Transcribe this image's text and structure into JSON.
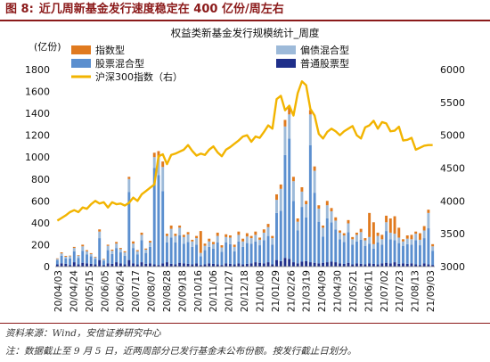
{
  "figure": {
    "number": "图 8:",
    "title": "近几周新基金发行速度稳定在 400 亿份/周左右"
  },
  "footer": {
    "source": "资料来源：Wind，安信证券研究中心",
    "note": "注：数据截止至 9 月 5 日，近两周部分已发行基金未公布份额。按发行截止日划分。"
  },
  "colors": {
    "index_fund": "#e07a1f",
    "hybrid_bias": "#9dbad9",
    "equity_hybrid": "#5b8fcf",
    "pure_equity": "#1f2f8a",
    "hs300": "#f2b400"
  },
  "chart_data": {
    "type": "bar",
    "title": "权益类新基金发行规模统计_周度",
    "y_left_label": "(亿份)",
    "y_left_lim": [
      0,
      1800
    ],
    "y_left_ticks": [
      "0",
      "200",
      "400",
      "600",
      "800",
      "1000",
      "1200",
      "1400",
      "1600",
      "1800"
    ],
    "y_right_lim": [
      3000,
      6000
    ],
    "y_right_ticks": [
      "3000",
      "3500",
      "4000",
      "4500",
      "5000",
      "5500",
      "6000"
    ],
    "x_tick_labels": [
      "20/04/03",
      "20/04/24",
      "20/05/15",
      "20/06/05",
      "20/06/24",
      "20/07/17",
      "20/08/07",
      "20/08/28",
      "20/09/18",
      "20/10/16",
      "20/11/06",
      "20/11/27",
      "20/12/18",
      "21/01/08",
      "21/01/29",
      "21/02/26",
      "21/03/19",
      "21/04/09",
      "21/04/30",
      "21/05/21",
      "21/06/11",
      "21/07/02",
      "21/07/23",
      "21/08/13",
      "21/09/03"
    ],
    "legend": [
      {
        "label": "指数型",
        "color": "#e07a1f"
      },
      {
        "label": "偏债混合型",
        "color": "#9dbad9"
      },
      {
        "label": "股票混合型",
        "color": "#5b8fcf"
      },
      {
        "label": "普通股票型",
        "color": "#1f2f8a"
      },
      {
        "label": "沪深300指数（右）",
        "color": "#f2b400"
      }
    ],
    "series": [
      {
        "name": "普通股票型",
        "values": [
          20,
          30,
          25,
          15,
          40,
          20,
          35,
          30,
          25,
          20,
          60,
          15,
          30,
          25,
          40,
          30,
          20,
          60,
          30,
          20,
          40,
          25,
          30,
          20,
          15,
          30,
          40,
          25,
          20,
          35,
          30,
          25,
          20,
          30,
          15,
          20,
          30,
          25,
          20,
          15,
          30,
          25,
          20,
          30,
          20,
          25,
          30,
          40,
          35,
          30,
          40,
          20,
          60,
          50,
          80,
          70,
          40,
          30,
          45,
          50,
          40,
          35,
          30,
          35,
          40,
          45,
          40,
          30,
          25,
          35,
          20,
          30,
          25,
          20,
          30,
          25,
          20,
          30,
          35,
          30,
          40,
          25,
          30,
          25,
          30,
          20,
          15,
          30,
          20,
          15
        ]
      },
      {
        "name": "股票混合型",
        "values": [
          40,
          70,
          50,
          60,
          100,
          60,
          110,
          80,
          70,
          50,
          200,
          40,
          120,
          90,
          130,
          100,
          80,
          620,
          140,
          90,
          200,
          100,
          150,
          880,
          820,
          660,
          180,
          240,
          200,
          250,
          180,
          200,
          160,
          170,
          80,
          130,
          150,
          140,
          200,
          120,
          190,
          180,
          120,
          200,
          160,
          190,
          180,
          190,
          160,
          210,
          240,
          180,
          430,
          460,
          940,
          1100,
          560,
          300,
          500,
          400,
          1070,
          640,
          380,
          240,
          400,
          360,
          300,
          220,
          200,
          280,
          180,
          200,
          220,
          170,
          180,
          140,
          200,
          170,
          290,
          220,
          200,
          190,
          160,
          180,
          170,
          220,
          180,
          230,
          330,
          130
        ]
      },
      {
        "name": "偏债混合型",
        "values": [
          10,
          20,
          15,
          20,
          30,
          20,
          40,
          30,
          20,
          15,
          60,
          10,
          40,
          30,
          40,
          30,
          30,
          120,
          40,
          30,
          50,
          30,
          40,
          100,
          160,
          220,
          60,
          80,
          60,
          70,
          60,
          70,
          50,
          60,
          30,
          40,
          50,
          40,
          60,
          40,
          50,
          60,
          40,
          60,
          50,
          60,
          50,
          60,
          50,
          70,
          80,
          60,
          120,
          200,
          260,
          220,
          180,
          80,
          140,
          120,
          280,
          200,
          120,
          80,
          120,
          100,
          80,
          60,
          60,
          80,
          50,
          60,
          70,
          50,
          60,
          40,
          60,
          50,
          80,
          60,
          60,
          50,
          40,
          50,
          50,
          60,
          50,
          70,
          140,
          40
        ]
      },
      {
        "name": "指数型",
        "values": [
          5,
          10,
          8,
          5,
          10,
          5,
          15,
          10,
          8,
          5,
          20,
          5,
          10,
          10,
          15,
          10,
          10,
          20,
          20,
          10,
          20,
          10,
          15,
          40,
          60,
          50,
          20,
          30,
          20,
          20,
          20,
          20,
          15,
          20,
          200,
          20,
          25,
          20,
          30,
          20,
          25,
          20,
          20,
          30,
          25,
          30,
          20,
          30,
          20,
          30,
          30,
          20,
          50,
          40,
          60,
          60,
          40,
          30,
          40,
          30,
          40,
          40,
          30,
          20,
          40,
          30,
          30,
          20,
          20,
          30,
          20,
          20,
          30,
          20,
          220,
          200,
          30,
          40,
          60,
          130,
          160,
          90,
          20,
          30,
          40,
          20,
          60,
          40,
          30,
          20
        ]
      },
      {
        "name": "沪深300指数（右）",
        "values": [
          3700,
          3740,
          3780,
          3830,
          3860,
          3830,
          3900,
          3880,
          3950,
          4000,
          3960,
          3980,
          3900,
          3980,
          3950,
          3960,
          3930,
          3970,
          4050,
          4000,
          4100,
          4150,
          4200,
          4250,
          4680,
          4710,
          4560,
          4700,
          4720,
          4750,
          4780,
          4850,
          4760,
          4690,
          4720,
          4700,
          4780,
          4830,
          4740,
          4680,
          4780,
          4820,
          4870,
          4920,
          4980,
          5000,
          4900,
          4980,
          4960,
          5050,
          5150,
          5100,
          5550,
          5600,
          5380,
          5450,
          5300,
          5640,
          5820,
          5760,
          5400,
          5300,
          5020,
          4950,
          5050,
          5100,
          5060,
          5000,
          5060,
          5100,
          5140,
          5000,
          4950,
          5120,
          5150,
          5220,
          5100,
          5200,
          5180,
          5060,
          5070,
          5130,
          4920,
          4930,
          4960,
          4780,
          4810,
          4840,
          4850,
          4850
        ]
      }
    ]
  }
}
